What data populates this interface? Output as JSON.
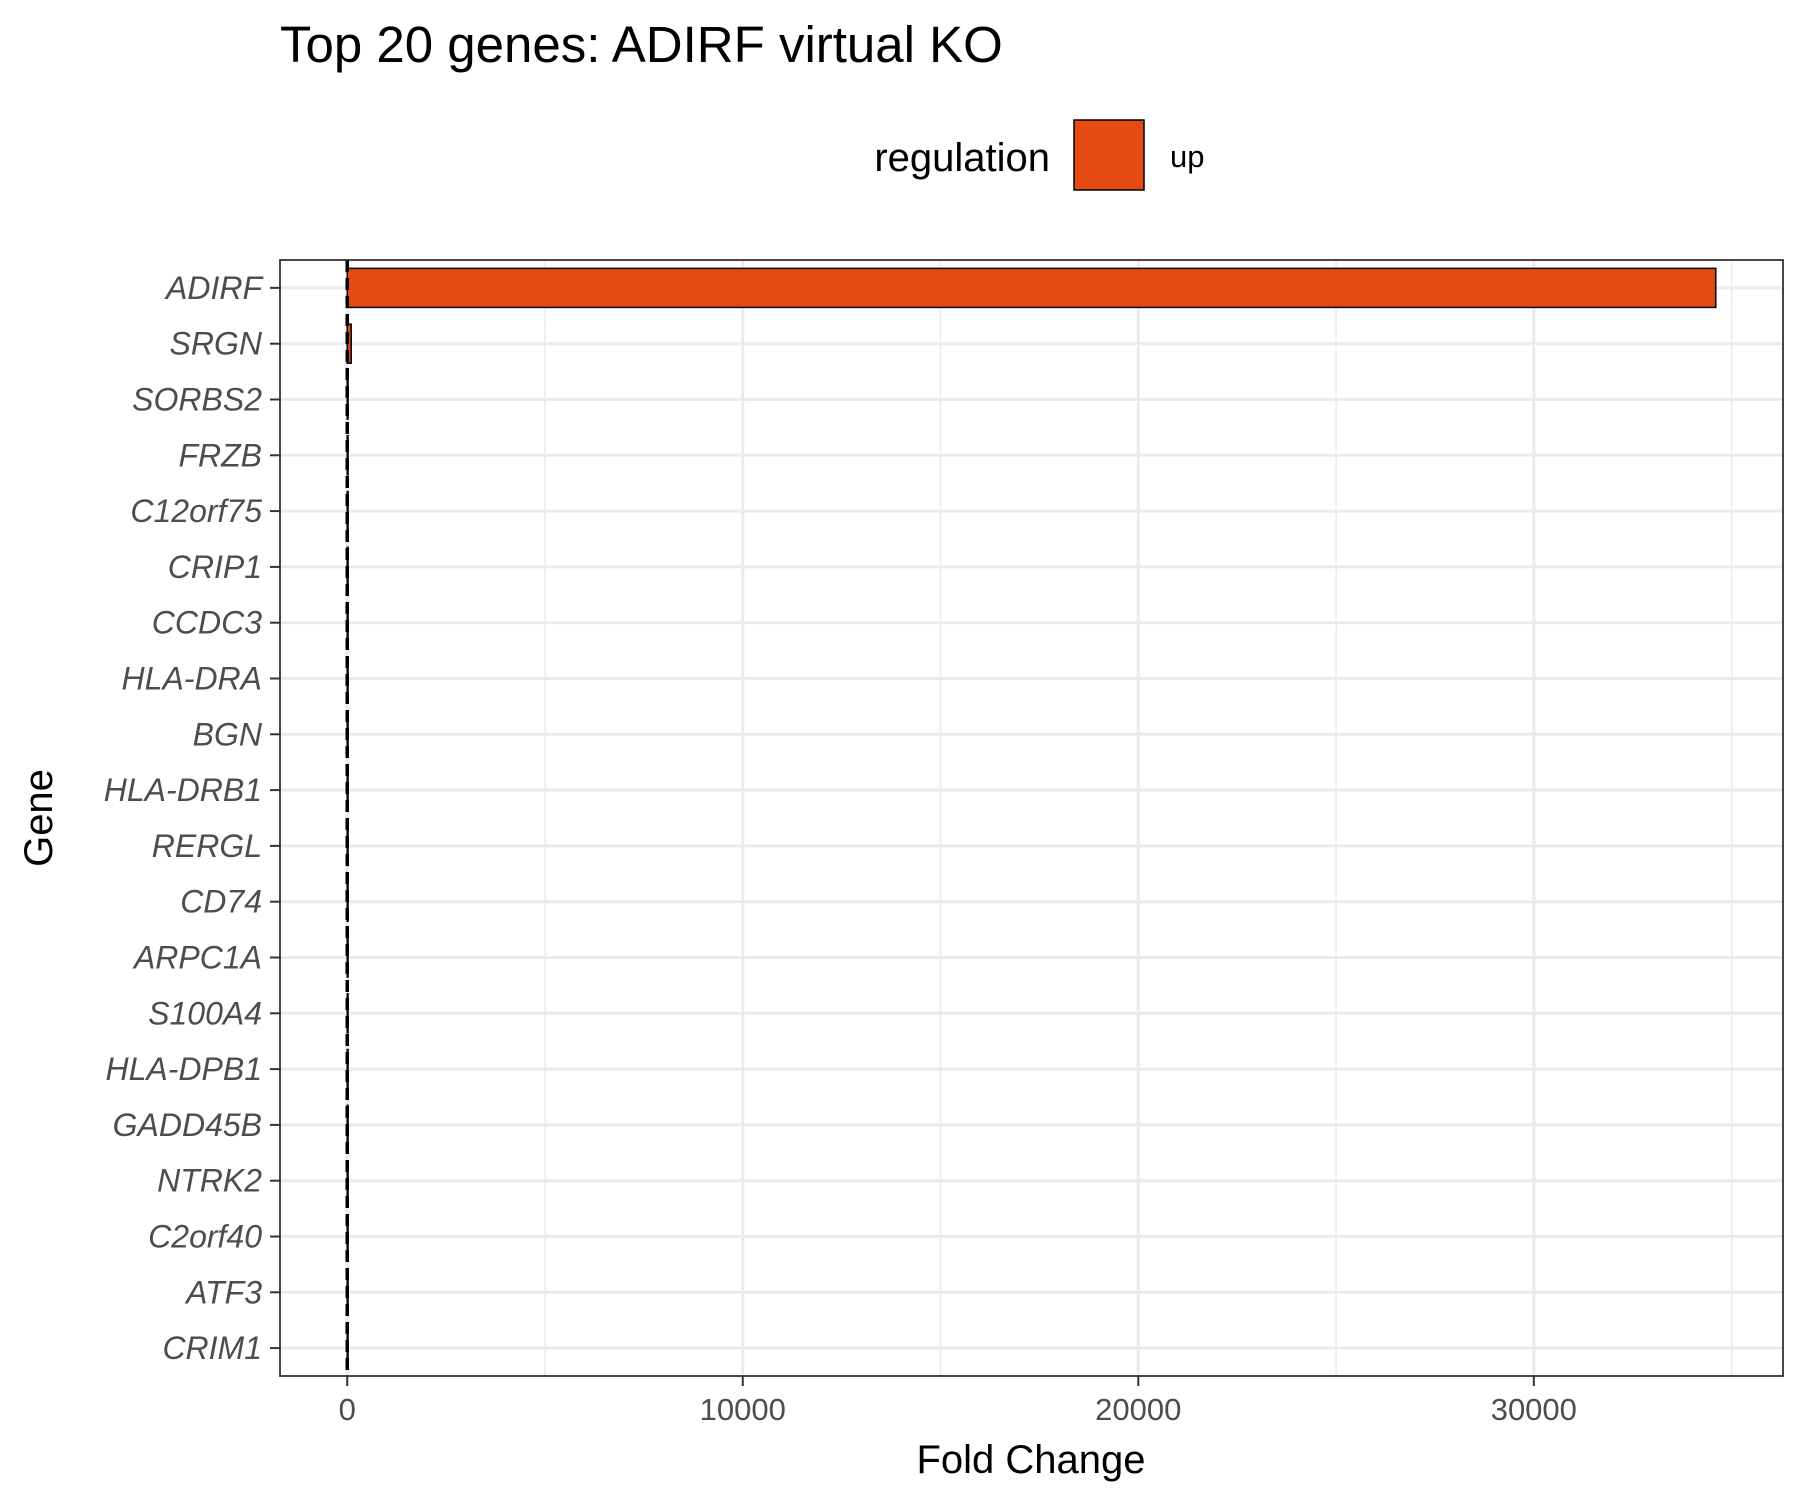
{
  "chart_data": {
    "type": "bar",
    "orientation": "horizontal",
    "title": "Top 20 genes: ADIRF virtual KO",
    "xlabel": "Fold Change",
    "ylabel": "Gene",
    "legend": {
      "title": "regulation",
      "placement": "top",
      "entries": [
        {
          "label": "up",
          "color": "#E64A13"
        }
      ]
    },
    "categories": [
      "ADIRF",
      "SRGN",
      "SORBS2",
      "FRZB",
      "C12orf75",
      "CRIP1",
      "CCDC3",
      "HLA-DRA",
      "BGN",
      "HLA-DRB1",
      "RERGL",
      "CD74",
      "ARPC1A",
      "S100A4",
      "HLA-DPB1",
      "GADD45B",
      "NTRK2",
      "C2orf40",
      "ATF3",
      "CRIM1"
    ],
    "values": [
      34600,
      100,
      20,
      15,
      12,
      10,
      9,
      8,
      8,
      7,
      7,
      6,
      6,
      5,
      5,
      5,
      4,
      4,
      4,
      3
    ],
    "regulation": [
      "up",
      "up",
      "up",
      "up",
      "up",
      "up",
      "up",
      "up",
      "up",
      "up",
      "up",
      "up",
      "up",
      "up",
      "up",
      "up",
      "up",
      "up",
      "up",
      "up"
    ],
    "xlim": [
      -1700,
      36300
    ],
    "xticks": [
      0,
      10000,
      20000,
      30000
    ],
    "xtick_labels": [
      "0",
      "10000",
      "20000",
      "30000"
    ],
    "reference_line": 0,
    "grid": true,
    "bar_color": "#E64A13",
    "theme": "bw"
  }
}
